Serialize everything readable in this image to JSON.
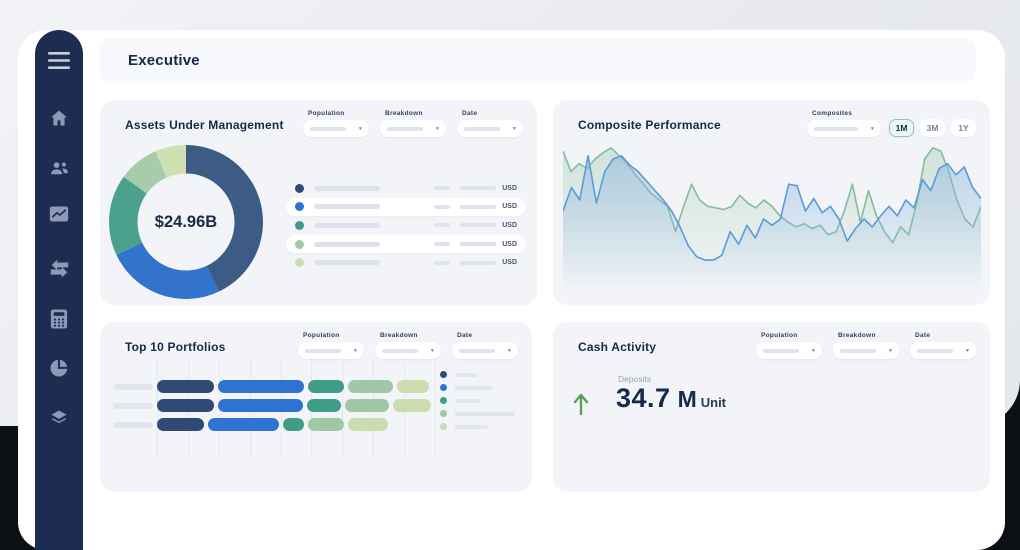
{
  "window": {
    "header_title": "Executive"
  },
  "icons": {
    "caret": "▾"
  },
  "sidebar": {
    "background": "#1d2c51",
    "items": [
      {
        "name": "menu"
      },
      {
        "name": "home"
      },
      {
        "name": "clients"
      },
      {
        "name": "performance"
      },
      {
        "name": "transactions"
      },
      {
        "name": "calculator"
      },
      {
        "name": "allocation"
      },
      {
        "name": "holdings"
      }
    ]
  },
  "cards": {
    "aum": {
      "title": "Assets Under Management",
      "filters": [
        "Population",
        "Breakdown",
        "Date"
      ],
      "currency_label": "USD",
      "chart_data": {
        "type": "donut",
        "center_label": "$24.96B",
        "segments": [
          {
            "color": "#3c5b85",
            "value": 43
          },
          {
            "color": "#3273cc",
            "value": 25
          },
          {
            "color": "#4ba18e",
            "value": 17
          },
          {
            "color": "#a7ccac",
            "value": 8.5
          },
          {
            "color": "#cfe0b4",
            "value": 6.5
          }
        ],
        "legend_dot_colors": [
          "#2c4a74",
          "#2e72d2",
          "#3f9c88",
          "#a0c8a6",
          "#cbdcae"
        ],
        "legend_rows": 5
      }
    },
    "composite": {
      "title": "Composite Performance",
      "filter_label": "Composites",
      "range_options": [
        "1M",
        "3M",
        "1Y"
      ],
      "selected_range": "1M",
      "chart_data": {
        "type": "area",
        "ylim": [
          0,
          100
        ],
        "grid": false,
        "series": [
          {
            "name": "green-series",
            "color": "#85bb9b",
            "values": [
              93,
              80,
              85,
              82,
              88,
              92,
              95,
              90,
              85,
              78,
              72,
              66,
              62,
              58,
              42,
              58,
              72,
              62,
              58,
              57,
              56,
              58,
              65,
              60,
              57,
              62,
              58,
              52,
              48,
              45,
              47,
              44,
              46,
              40,
              42,
              55,
              72,
              48,
              68,
              52,
              42,
              35,
              45,
              40,
              60,
              88,
              95,
              93,
              80,
              62,
              50,
              45,
              58
            ]
          },
          {
            "name": "blue-series",
            "color": "#5b9bd8",
            "values": [
              55,
              70,
              62,
              90,
              60,
              80,
              88,
              90,
              84,
              80,
              74,
              68,
              62,
              55,
              45,
              33,
              26,
              24,
              24,
              27,
              42,
              34,
              46,
              38,
              50,
              46,
              50,
              72,
              71,
              55,
              63,
              54,
              58,
              50,
              36,
              44,
              50,
              45,
              52,
              58,
              52,
              62,
              57,
              75,
              68,
              82,
              85,
              78,
              83,
              70,
              63
            ]
          }
        ]
      }
    },
    "portfolios": {
      "title": "Top 10 Portfolios",
      "filters": [
        "Population",
        "Breakdown",
        "Date"
      ],
      "chart_data": {
        "type": "stacked-bar-horizontal",
        "colors": [
          "#2e4a75",
          "#2e72d2",
          "#3f9c88",
          "#a0c8a6",
          "#cbdcae"
        ],
        "rows": [
          {
            "segments": [
              57,
              86,
              36,
              45,
              32
            ]
          },
          {
            "segments": [
              57,
              85,
              34,
              44,
              38
            ]
          },
          {
            "segments": [
              47,
              71,
              21,
              36,
              40
            ]
          }
        ],
        "row_tops": [
          58,
          77,
          96
        ],
        "gridline_count": 10,
        "legend_bar_widths": [
          22,
          38,
          25,
          60,
          33
        ]
      }
    },
    "cash": {
      "title": "Cash Activity",
      "filters": [
        "Population",
        "Breakdown",
        "Date"
      ],
      "metric": {
        "direction": "up",
        "arrow_color": "#57a05c",
        "label": "Deposits",
        "value": "34.7",
        "scale": "M",
        "unit": "Unit"
      }
    }
  }
}
